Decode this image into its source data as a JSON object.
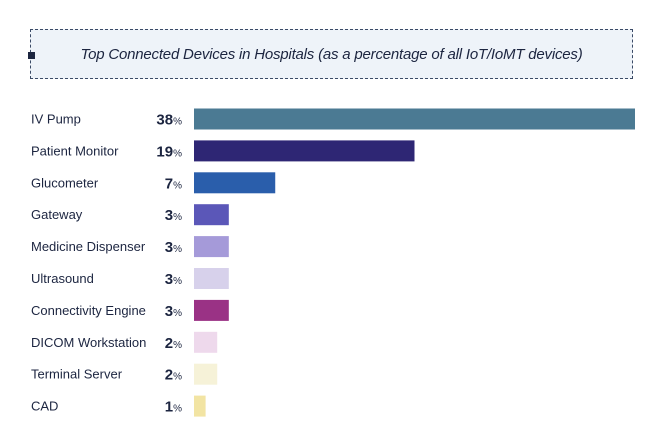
{
  "chart_data": {
    "type": "bar",
    "orientation": "horizontal",
    "title": "Top Connected Devices in Hospitals (as a percentage of all IoT/IoMT devices)",
    "value_suffix": "%",
    "categories": [
      "IV Pump",
      "Patient Monitor",
      "Glucometer",
      "Gateway",
      "Medicine Dispenser",
      "Ultrasound",
      "Connectivity Engine",
      "DICOM Workstation",
      "Terminal Server",
      "CAD"
    ],
    "values": [
      38,
      19,
      7,
      3,
      3,
      3,
      3,
      2,
      2,
      1
    ],
    "colors": [
      "#4b7a93",
      "#2e2674",
      "#2a5eab",
      "#5b57b8",
      "#a59ad9",
      "#d7d1eb",
      "#9a3285",
      "#eed9ec",
      "#f6f2d8",
      "#f2e4a3"
    ],
    "xlim": [
      0,
      38
    ],
    "grid": false,
    "legend": "none"
  }
}
